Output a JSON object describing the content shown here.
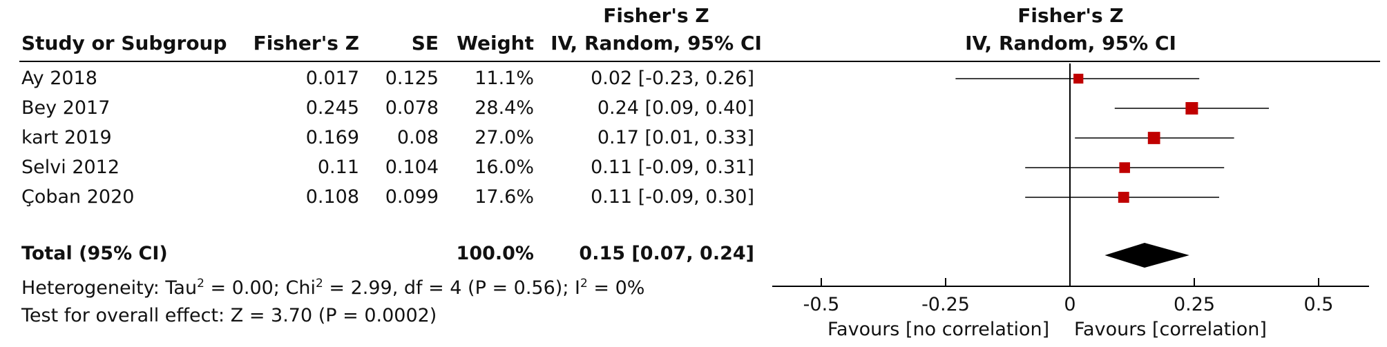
{
  "table": {
    "headers": {
      "study": "Study or Subgroup",
      "z": "Fisher's Z",
      "se": "SE",
      "weight": "Weight",
      "ci_line1": "Fisher's Z",
      "ci_line2": "IV, Random, 95% CI"
    },
    "plot_header_line1": "Fisher's Z",
    "plot_header_line2": "IV, Random, 95% CI",
    "rows": [
      {
        "study": "Ay 2018",
        "z": "0.017",
        "se": "0.125",
        "weight": "11.1%",
        "ci": "0.02 [-0.23, 0.26]"
      },
      {
        "study": "Bey 2017",
        "z": "0.245",
        "se": "0.078",
        "weight": "28.4%",
        "ci": "0.24 [0.09, 0.40]"
      },
      {
        "study": "kart 2019",
        "z": "0.169",
        "se": "0.08",
        "weight": "27.0%",
        "ci": "0.17 [0.01, 0.33]"
      },
      {
        "study": "Selvi 2012",
        "z": "0.11",
        "se": "0.104",
        "weight": "16.0%",
        "ci": "0.11 [-0.09, 0.31]"
      },
      {
        "study": "Çoban 2020",
        "z": "0.108",
        "se": "0.099",
        "weight": "17.6%",
        "ci": "0.11 [-0.09, 0.30]"
      }
    ],
    "total": {
      "label": "Total (95% CI)",
      "weight": "100.0%",
      "ci": "0.15 [0.07, 0.24]"
    }
  },
  "footnotes": {
    "heterogeneity_a": "Heterogeneity: Tau",
    "heterogeneity_b": " = 0.00; Chi",
    "heterogeneity_c": " = 2.99, df = 4 (P = 0.56); I",
    "heterogeneity_d": " = 0%",
    "sup2": "2",
    "overall": "Test for overall effect: Z = 3.70 (P = 0.0002)"
  },
  "axis": {
    "favours_left": "Favours [no correlation]",
    "favours_right": "Favours [correlation]"
  },
  "colors": {
    "study_marker": "#c00000",
    "diamond": "#000000",
    "line": "#000000"
  },
  "chart_data": {
    "type": "forest",
    "xlim": [
      -0.5,
      0.5
    ],
    "xticks": [
      -0.5,
      -0.25,
      0,
      0.25,
      0.5
    ],
    "xtick_labels": [
      "-0.5",
      "-0.25",
      "0",
      "0.25",
      "0.5"
    ],
    "studies": [
      {
        "name": "Ay 2018",
        "estimate": 0.017,
        "lower": -0.23,
        "upper": 0.26,
        "weight": 11.1
      },
      {
        "name": "Bey 2017",
        "estimate": 0.245,
        "lower": 0.09,
        "upper": 0.4,
        "weight": 28.4
      },
      {
        "name": "kart 2019",
        "estimate": 0.169,
        "lower": 0.01,
        "upper": 0.33,
        "weight": 27.0
      },
      {
        "name": "Selvi 2012",
        "estimate": 0.11,
        "lower": -0.09,
        "upper": 0.31,
        "weight": 16.0
      },
      {
        "name": "Çoban 2020",
        "estimate": 0.108,
        "lower": -0.09,
        "upper": 0.3,
        "weight": 17.6
      }
    ],
    "pooled": {
      "estimate": 0.15,
      "lower": 0.07,
      "upper": 0.24
    }
  }
}
